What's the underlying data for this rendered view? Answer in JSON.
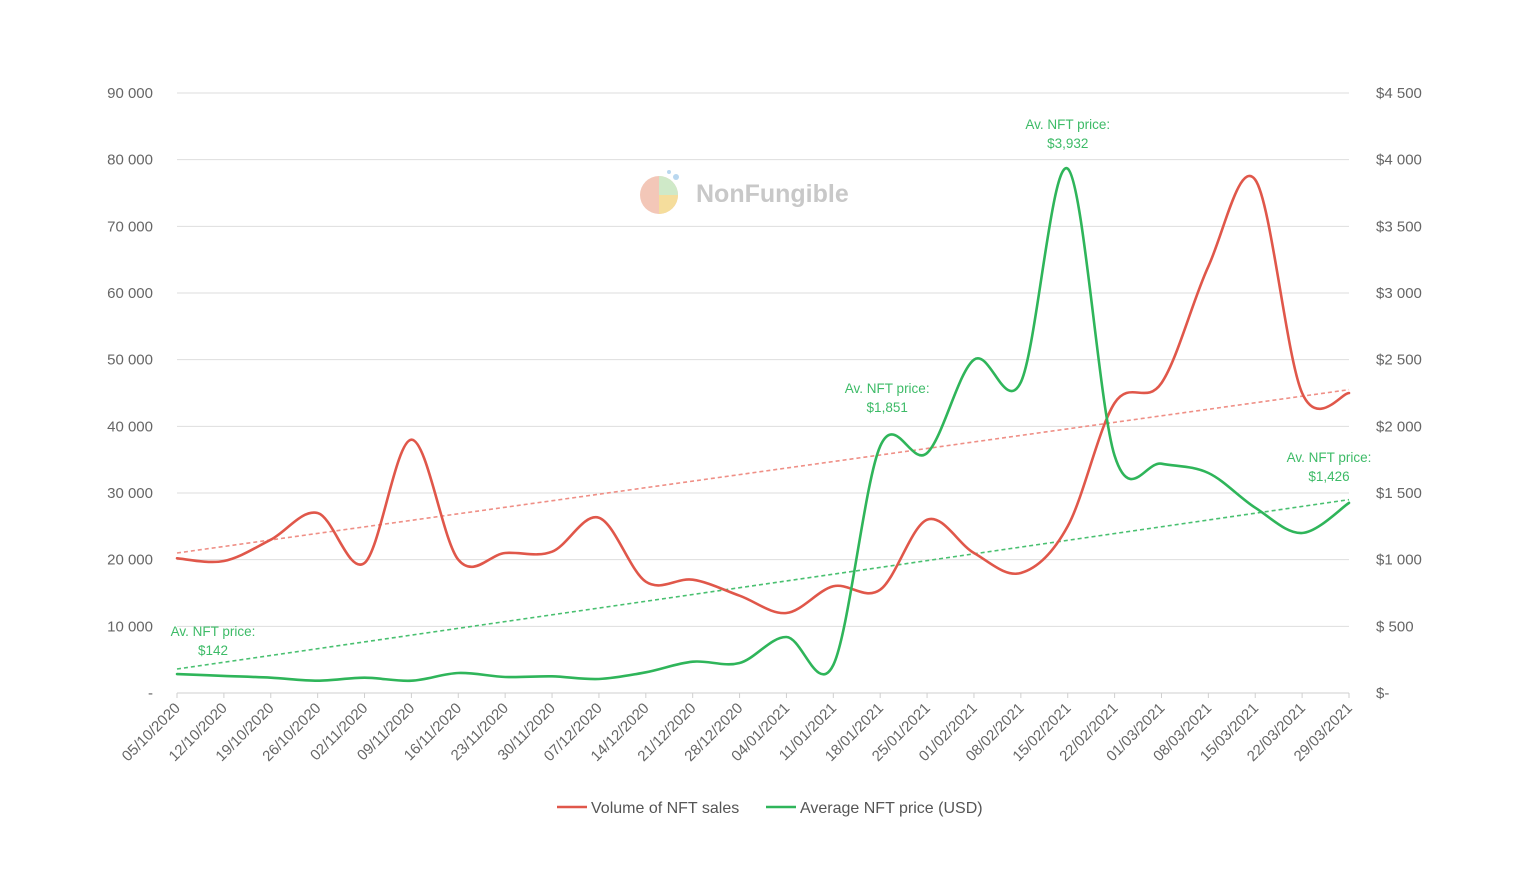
{
  "watermark": {
    "text": "NonFungible"
  },
  "chart_data": {
    "type": "line",
    "x": [
      "05/10/2020",
      "12/10/2020",
      "19/10/2020",
      "26/10/2020",
      "02/11/2020",
      "09/11/2020",
      "16/11/2020",
      "23/11/2020",
      "30/11/2020",
      "07/12/2020",
      "14/12/2020",
      "21/12/2020",
      "28/12/2020",
      "04/01/2021",
      "11/01/2021",
      "18/01/2021",
      "25/01/2021",
      "01/02/2021",
      "08/02/2021",
      "15/02/2021",
      "22/02/2021",
      "01/03/2021",
      "08/03/2021",
      "15/03/2021",
      "22/03/2021",
      "29/03/2021"
    ],
    "left_axis": {
      "ylim": [
        0,
        90000
      ],
      "ticks": [
        "-",
        "10 000",
        "20 000",
        "30 000",
        "40 000",
        "50 000",
        "60 000",
        "70 000",
        "80 000",
        "90 000"
      ]
    },
    "right_axis": {
      "ylim": [
        0,
        4500
      ],
      "ticks": [
        "$-",
        "$ 500",
        "$1 000",
        "$1 500",
        "$2 000",
        "$2 500",
        "$3 000",
        "$3 500",
        "$4 000",
        "$4 500"
      ]
    },
    "grid": true,
    "legend_position": "bottom",
    "series": [
      {
        "name": "Volume of NFT sales",
        "axis": "left",
        "color": "#e0574a",
        "values": [
          20200,
          19800,
          23000,
          27000,
          19500,
          38000,
          20000,
          21000,
          21200,
          26300,
          16700,
          17000,
          14600,
          12000,
          16000,
          15500,
          26000,
          21000,
          18000,
          25000,
          43500,
          46500,
          64000,
          77000,
          45000,
          45000
        ],
        "trend": {
          "start": 21000,
          "end": 45500,
          "color": "#ef8f86"
        }
      },
      {
        "name": "Average NFT price (USD)",
        "axis": "right",
        "color": "#2fb55a",
        "values": [
          142,
          128,
          115,
          92,
          115,
          92,
          150,
          120,
          125,
          105,
          155,
          235,
          225,
          420,
          210,
          1851,
          1800,
          2500,
          2330,
          3932,
          1780,
          1720,
          1650,
          1390,
          1200,
          1426
        ],
        "trend": {
          "start": 180,
          "end": 1450,
          "color": "#49c070"
        }
      }
    ],
    "annotations": [
      {
        "series": 1,
        "index": 0,
        "text": [
          "Av. NFT price:",
          "$142"
        ]
      },
      {
        "series": 1,
        "index": 15,
        "text": [
          "Av. NFT price:",
          "$1,851"
        ]
      },
      {
        "series": 1,
        "index": 19,
        "text": [
          "Av. NFT price:",
          "$3,932"
        ]
      },
      {
        "series": 1,
        "index": 25,
        "text": [
          "Av. NFT price:",
          "$1,426"
        ]
      }
    ]
  }
}
